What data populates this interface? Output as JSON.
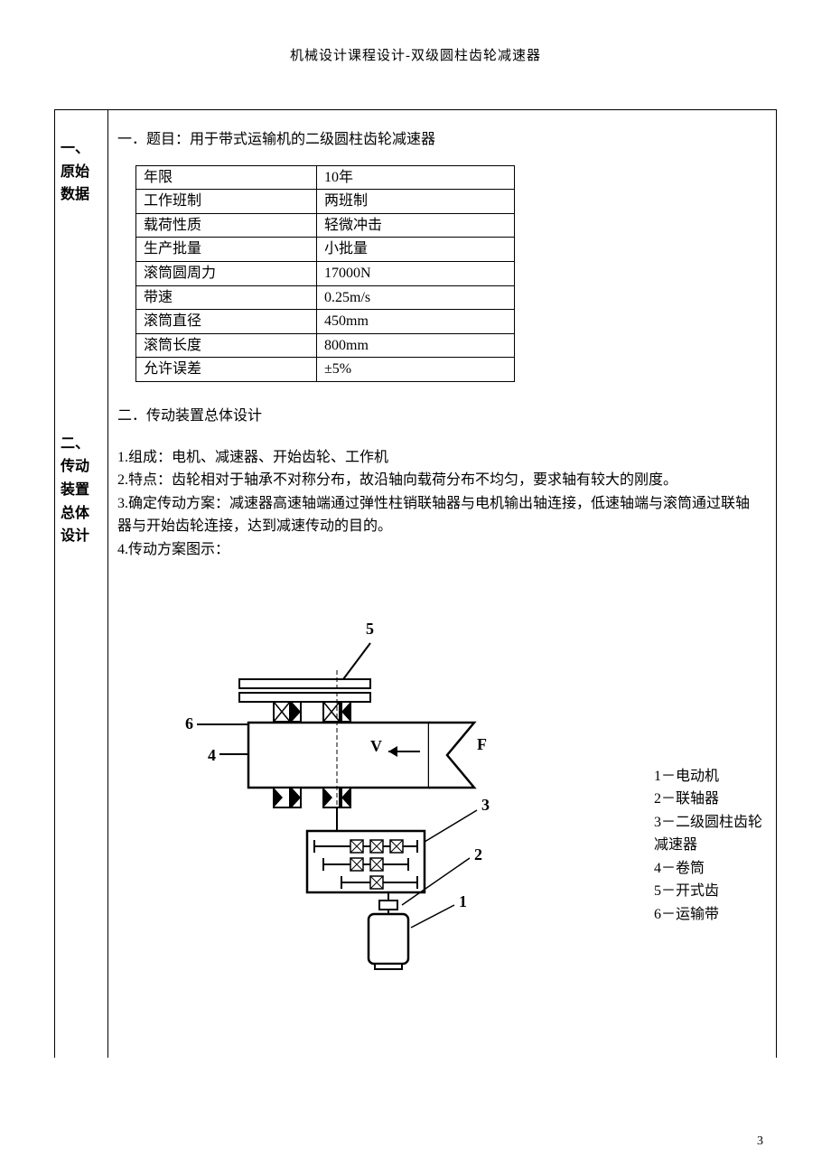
{
  "header": {
    "title": "机械设计课程设计-双级圆柱齿轮减速器"
  },
  "sidebar": {
    "section1": "一、原始数据",
    "section2": "二、传动装置总体设计"
  },
  "main": {
    "title1": "一．题目：用于带式运输机的二级圆柱齿轮减速器",
    "table": {
      "rows": [
        [
          "年限",
          "10年"
        ],
        [
          "工作班制",
          "两班制"
        ],
        [
          "载荷性质",
          "轻微冲击"
        ],
        [
          "生产批量",
          "小批量"
        ],
        [
          "滚筒圆周力",
          "17000N"
        ],
        [
          "带速",
          "0.25m/s"
        ],
        [
          "滚筒直径",
          "450mm"
        ],
        [
          "滚筒长度",
          "800mm"
        ],
        [
          "允许误差",
          "±5%"
        ]
      ]
    },
    "title2": "二．传动装置总体设计",
    "paragraphs": [
      "1.组成：电机、减速器、开始齿轮、工作机",
      "2.特点：齿轮相对于轴承不对称分布，故沿轴向载荷分布不均匀，要求轴有较大的刚度。",
      "3.确定传动方案：减速器高速轴端通过弹性柱销联轴器与电机输出轴连接，低速轴端与滚筒通过联轴器与开始齿轮连接，达到减速传动的目的。",
      "4.传动方案图示："
    ],
    "diagram": {
      "labels": {
        "l5": "5",
        "l6": "6",
        "l4": "4",
        "lV": "V",
        "lF": "F",
        "l3": "3",
        "l2": "2",
        "l1": "1"
      },
      "legend": [
        "1－电动机",
        "2－联轴器",
        "3－二级圆柱齿轮减速器",
        "4－卷筒",
        "5－开式齿",
        "6－运输带"
      ],
      "colors": {
        "stroke": "#000000",
        "fill": "#ffffff",
        "hatch": "#000000"
      },
      "stroke_width": 2
    }
  },
  "page_number": "3"
}
